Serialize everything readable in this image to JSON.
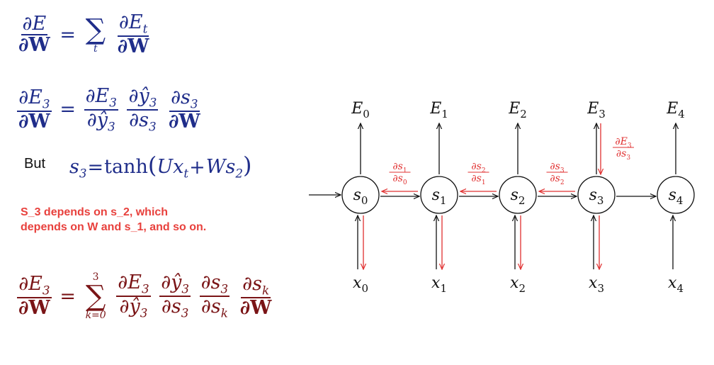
{
  "equations": {
    "eq1": {
      "lhs_num": "∂E",
      "lhs_den": "∂W",
      "sum_sub": "t",
      "rhs_num": "∂E",
      "rhs_num_sub": "t",
      "rhs_den": "∂W"
    },
    "eq2": {
      "lhs_num": "∂E",
      "lhs_num_sub": "3",
      "lhs_den": "∂W",
      "f1_num": "∂E",
      "f1_num_sub": "3",
      "f1_den": "∂ŷ",
      "f1_den_sub": "3",
      "f2_num": "∂ŷ",
      "f2_num_sub": "3",
      "f2_den": "∂s",
      "f2_den_sub": "3",
      "f3_num": "∂s",
      "f3_num_sub": "3",
      "f3_den": "∂W"
    },
    "but_label": "But",
    "eq3": {
      "lhs": "s",
      "lhs_sub": "3",
      "rhs_func": "tanh",
      "rhs_a": "Ux",
      "rhs_a_sub": "t",
      "rhs_b": "Ws",
      "rhs_b_sub": "2"
    },
    "note_line1": "S_3 depends on s_2, which",
    "note_line2": "depends on W  and s_1, and so on.",
    "eq4": {
      "lhs_num": "∂E",
      "lhs_num_sub": "3",
      "lhs_den": "∂W",
      "sum_top": "3",
      "sum_bottom": "k=0",
      "f1_num": "∂E",
      "f1_num_sub": "3",
      "f1_den": "∂ŷ",
      "f1_den_sub": "3",
      "f2_num": "∂ŷ",
      "f2_num_sub": "3",
      "f2_den": "∂s",
      "f2_den_sub": "3",
      "f3_num": "∂s",
      "f3_num_sub": "3",
      "f3_den": "∂s",
      "f3_den_sub": "k",
      "f4_num": "∂s",
      "f4_num_sub": "k",
      "f4_den": "∂W"
    }
  },
  "diagram": {
    "colors": {
      "line": "#111111",
      "highlight": "#e03030"
    },
    "nodes": [
      {
        "state": "s",
        "sub": "0",
        "error": "E",
        "error_sub": "0",
        "input": "x",
        "input_sub": "0"
      },
      {
        "state": "s",
        "sub": "1",
        "error": "E",
        "error_sub": "1",
        "input": "x",
        "input_sub": "1"
      },
      {
        "state": "s",
        "sub": "2",
        "error": "E",
        "error_sub": "2",
        "input": "x",
        "input_sub": "2"
      },
      {
        "state": "s",
        "sub": "3",
        "error": "E",
        "error_sub": "3",
        "input": "x",
        "input_sub": "3"
      },
      {
        "state": "s",
        "sub": "4",
        "error": "E",
        "error_sub": "4",
        "input": "x",
        "input_sub": "4"
      }
    ],
    "grad_labels": [
      {
        "num": "∂s",
        "num_sub": "1",
        "den": "∂s",
        "den_sub": "0"
      },
      {
        "num": "∂s",
        "num_sub": "2",
        "den": "∂s",
        "den_sub": "1"
      },
      {
        "num": "∂s",
        "num_sub": "3",
        "den": "∂s",
        "den_sub": "2"
      }
    ],
    "error_grad_label": {
      "num": "∂E",
      "num_sub": "3",
      "den": "∂s",
      "den_sub": "3"
    }
  }
}
